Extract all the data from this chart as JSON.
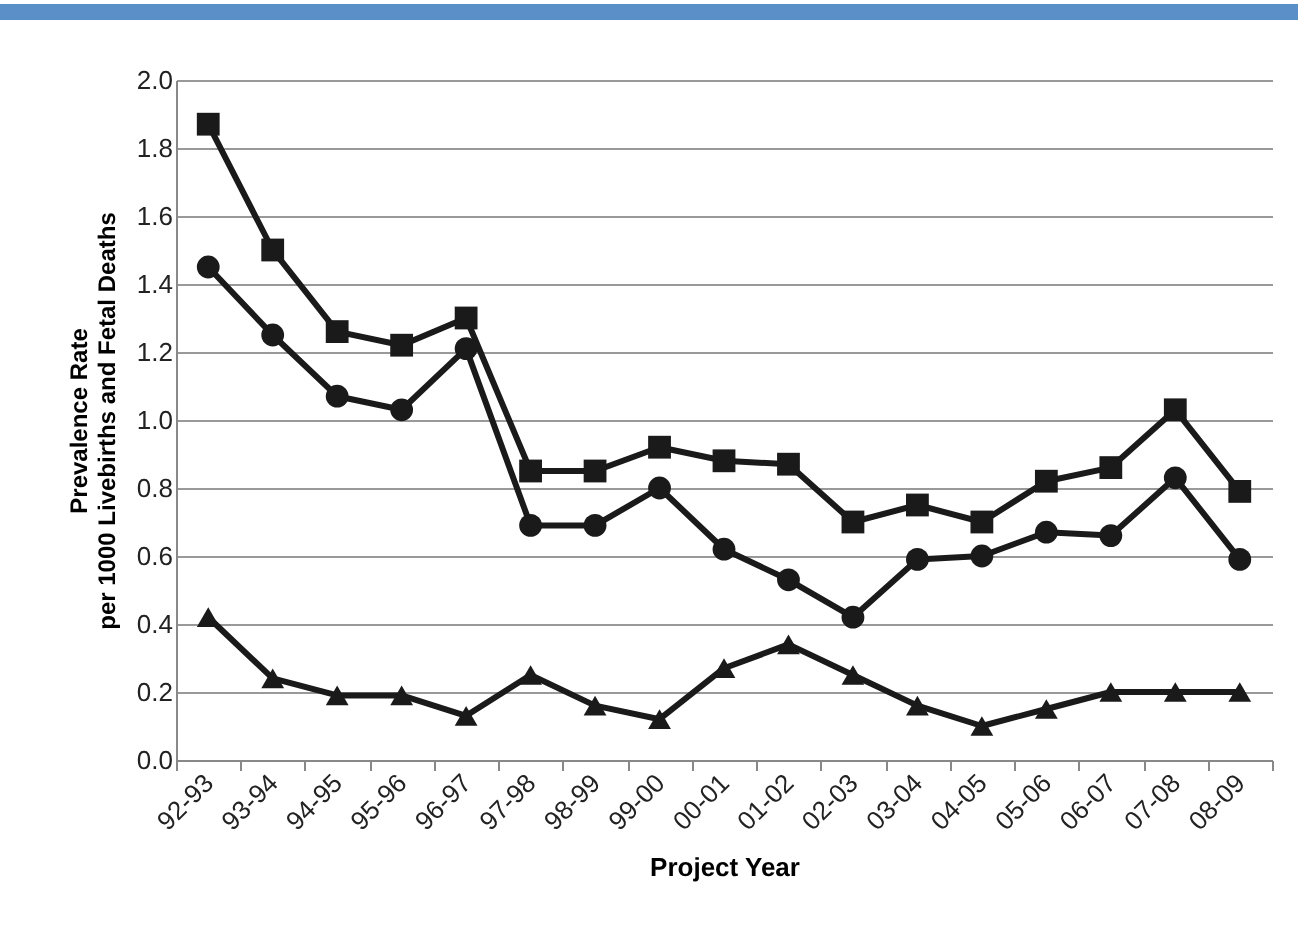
{
  "chart_data": {
    "type": "line",
    "xlabel": "Project Year",
    "ylabel": "Prevalence Rate\nper 1000 Livebirths and Fetal Deaths",
    "categories": [
      "92-93",
      "93-94",
      "94-95",
      "95-96",
      "96-97",
      "97-98",
      "98-99",
      "99-00",
      "00-01",
      "01-02",
      "02-03",
      "03-04",
      "04-05",
      "05-06",
      "06-07",
      "07-08",
      "08-09"
    ],
    "series": [
      {
        "color": "#1a1a1a",
        "marker": "square",
        "values": [
          1.87,
          1.5,
          1.26,
          1.22,
          1.3,
          0.85,
          0.85,
          0.92,
          0.88,
          0.87,
          0.7,
          0.75,
          0.7,
          0.82,
          0.86,
          1.03,
          0.79
        ]
      },
      {
        "color": "#1a1a1a",
        "marker": "circle",
        "values": [
          1.45,
          1.25,
          1.07,
          1.03,
          1.21,
          0.69,
          0.69,
          0.8,
          0.62,
          0.53,
          0.42,
          0.59,
          0.6,
          0.67,
          0.66,
          0.83,
          0.59
        ]
      },
      {
        "color": "#1a1a1a",
        "marker": "triangle",
        "values": [
          0.42,
          0.24,
          0.19,
          0.19,
          0.13,
          0.25,
          0.16,
          0.12,
          0.27,
          0.34,
          0.25,
          0.16,
          0.1,
          0.15,
          0.2,
          0.2,
          0.2
        ]
      }
    ],
    "ylim": [
      0,
      2
    ],
    "yticks": [
      {
        "value": 0,
        "label": "0.0"
      },
      0.2,
      0.4,
      0.6,
      0.8,
      {
        "value": 1,
        "label": "1.0"
      },
      1.2,
      1.4,
      1.6,
      1.8,
      {
        "value": 2,
        "label": "2.0"
      }
    ],
    "grid": "y",
    "line_style": "solid"
  }
}
